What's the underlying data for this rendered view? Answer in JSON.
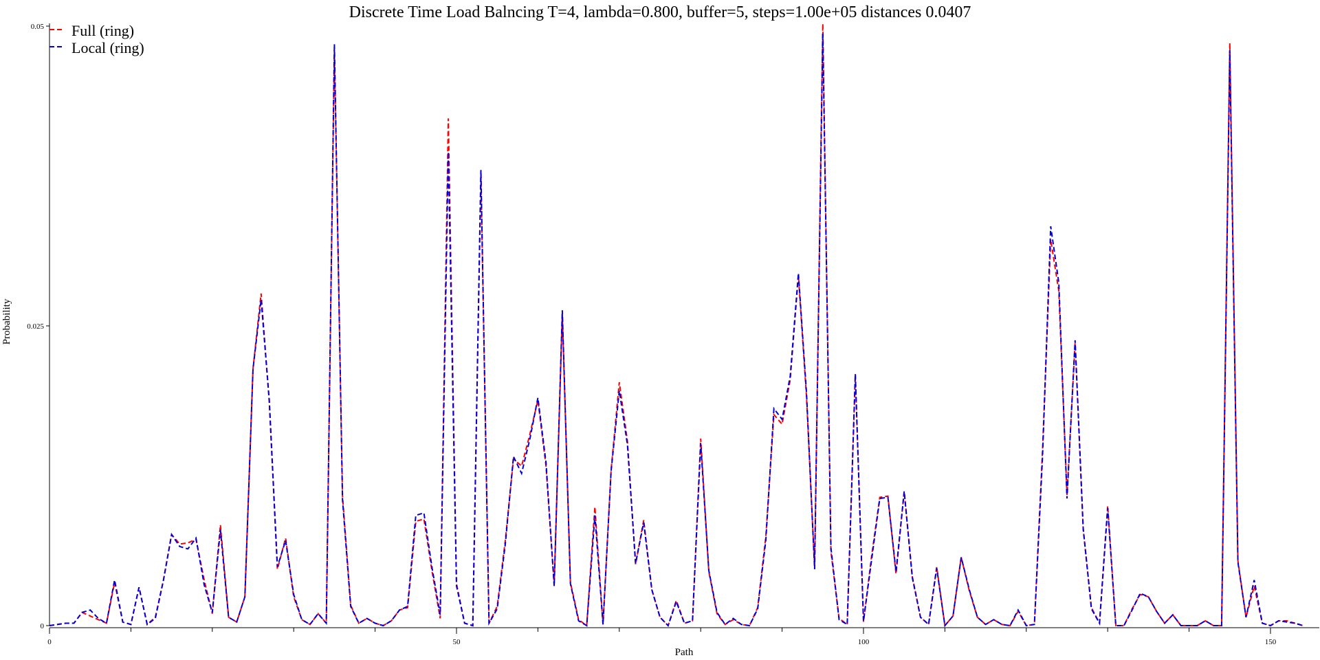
{
  "chart_data": {
    "type": "line",
    "title": "Discrete Time Load Balncing T=4, lambda=0.800, buffer=5, steps=1.00e+05 distances 0.0407",
    "xlabel": "Path",
    "ylabel": "Probability",
    "xlim": [
      0,
      156
    ],
    "ylim": [
      0,
      0.05
    ],
    "x_ticks": [
      0,
      50,
      100,
      150
    ],
    "x_tick_labels": [
      "0",
      "50",
      "100",
      "150"
    ],
    "y_ticks": [
      0,
      0.025,
      0.05
    ],
    "y_tick_labels": [
      "0",
      "0.025",
      "0.05"
    ],
    "grid": false,
    "legend_position": "top-left",
    "series": [
      {
        "name": "Full (ring)",
        "color": "#ff0000",
        "values": [
          0,
          0.0001,
          0.0002,
          0.0002,
          0.0011,
          0.0008,
          0.0005,
          0.0002,
          0.0036,
          0.0003,
          0.0001,
          0.0032,
          0.0001,
          0.0007,
          0.0038,
          0.0076,
          0.0068,
          0.0069,
          0.0072,
          0.0038,
          0.001,
          0.0084,
          0.0007,
          0.0003,
          0.0024,
          0.0214,
          0.0277,
          0.0186,
          0.0047,
          0.0073,
          0.0024,
          0.0005,
          0.0001,
          0.001,
          0.0002,
          0.048,
          0.0108,
          0.0017,
          0.0002,
          0.0006,
          0.0002,
          0.0,
          0.0004,
          0.0013,
          0.0015,
          0.0087,
          0.0089,
          0.0045,
          0.0006,
          0.0423,
          0.0035,
          0.0002,
          0.0,
          0.0376,
          0.0002,
          0.0016,
          0.0071,
          0.0139,
          0.0133,
          0.0159,
          0.0188,
          0.0133,
          0.0034,
          0.026,
          0.0036,
          0.0005,
          0.0,
          0.0099,
          0.0001,
          0.013,
          0.0203,
          0.0154,
          0.0051,
          0.0088,
          0.003,
          0.0007,
          0.0,
          0.0021,
          0.0002,
          0.0004,
          0.0156,
          0.0045,
          0.001,
          0.0001,
          0.0005,
          0.0001,
          0.0,
          0.0015,
          0.0074,
          0.0176,
          0.0168,
          0.0205,
          0.0292,
          0.0191,
          0.0049,
          0.0502,
          0.0062,
          0.0006,
          0.0001,
          0.0209,
          0.0003,
          0.0058,
          0.0107,
          0.0108,
          0.0043,
          0.0112,
          0.0041,
          0.0007,
          0.0001,
          0.0049,
          0.0,
          0.0008,
          0.0057,
          0.0029,
          0.0007,
          0.0001,
          0.0005,
          0.0001,
          0.0,
          0.0012,
          0.0,
          0.0001,
          0.0146,
          0.0322,
          0.0279,
          0.0109,
          0.0236,
          0.008,
          0.0015,
          0.0002,
          0.01,
          0.0,
          0.0,
          0.0014,
          0.0026,
          0.0024,
          0.0012,
          0.0002,
          0.0009,
          0.0,
          0.0,
          0.0,
          0.0004,
          0.0,
          0.0,
          0.0486,
          0.0054,
          0.0007,
          0.0033,
          0.0002,
          0.0,
          0.0004,
          0.0004,
          0.0002,
          0.0
        ]
      },
      {
        "name": "Local (ring)",
        "color": "#0000dd",
        "values": [
          0,
          0.0001,
          0.0002,
          0.0002,
          0.0011,
          0.0013,
          0.0006,
          0.0002,
          0.0038,
          0.0003,
          0.0001,
          0.0032,
          0.0001,
          0.0006,
          0.0038,
          0.0076,
          0.0066,
          0.0064,
          0.0073,
          0.0034,
          0.0011,
          0.008,
          0.0007,
          0.0003,
          0.0024,
          0.0214,
          0.0272,
          0.0188,
          0.0049,
          0.0071,
          0.0026,
          0.0005,
          0.0001,
          0.001,
          0.0002,
          0.0485,
          0.0105,
          0.0016,
          0.0002,
          0.0006,
          0.0002,
          0.0,
          0.0004,
          0.0013,
          0.0016,
          0.0092,
          0.0094,
          0.0048,
          0.0009,
          0.0395,
          0.0033,
          0.0002,
          0.0,
          0.038,
          0.0002,
          0.0014,
          0.0068,
          0.0141,
          0.0127,
          0.0155,
          0.019,
          0.0136,
          0.0033,
          0.0263,
          0.0035,
          0.0004,
          0.0,
          0.0092,
          0.0001,
          0.0129,
          0.0196,
          0.0151,
          0.0052,
          0.0086,
          0.003,
          0.0007,
          0.0,
          0.002,
          0.0002,
          0.0004,
          0.0152,
          0.0046,
          0.0011,
          0.0001,
          0.0006,
          0.0001,
          0.0,
          0.0014,
          0.0071,
          0.0181,
          0.0172,
          0.0208,
          0.0294,
          0.0194,
          0.0047,
          0.0494,
          0.0065,
          0.0005,
          0.0001,
          0.021,
          0.0004,
          0.0055,
          0.0106,
          0.0107,
          0.0045,
          0.0112,
          0.004,
          0.0007,
          0.0001,
          0.0048,
          0.0,
          0.0008,
          0.0057,
          0.003,
          0.0007,
          0.0001,
          0.0005,
          0.0001,
          0.0,
          0.0013,
          0.0,
          0.0001,
          0.0141,
          0.0333,
          0.0286,
          0.0106,
          0.0238,
          0.0081,
          0.0014,
          0.0002,
          0.0098,
          0.0,
          0.0,
          0.0013,
          0.0027,
          0.0024,
          0.0012,
          0.0002,
          0.0009,
          0.0,
          0.0,
          0.0,
          0.0004,
          0.0,
          0.0,
          0.048,
          0.0053,
          0.0007,
          0.0038,
          0.0002,
          0.0,
          0.0004,
          0.0003,
          0.0002,
          0.0
        ]
      }
    ]
  }
}
